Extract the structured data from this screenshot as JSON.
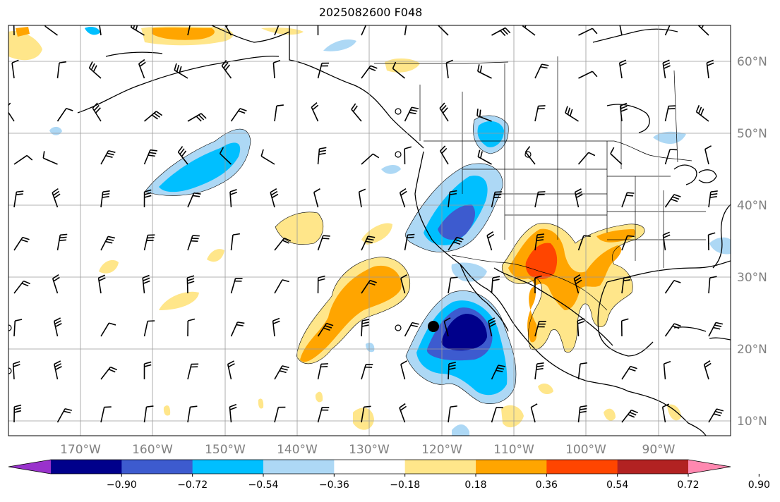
{
  "title": "2025082600 F048",
  "lon_labels": [
    "170°W",
    "160°W",
    "150°W",
    "140°W",
    "130°W",
    "120°W",
    "110°W",
    "100°W",
    "90°W"
  ],
  "lat_labels": [
    "60°N",
    "50°N",
    "40°N",
    "30°N",
    "20°N",
    "10°N"
  ],
  "colorbar": {
    "ticks": [
      "−0.90",
      "−0.72",
      "−0.54",
      "−0.36",
      "−0.18",
      "0.18",
      "0.36",
      "0.54",
      "0.72",
      "0.90"
    ],
    "colors": [
      "#9932cc",
      "#00008b",
      "#3d5bcf",
      "#00bfff",
      "#add8f5",
      "#ffffff",
      "#ffe68a",
      "#ffa500",
      "#ff4500",
      "#b22222",
      "#ff88b0"
    ]
  },
  "marker": "storm-center"
}
